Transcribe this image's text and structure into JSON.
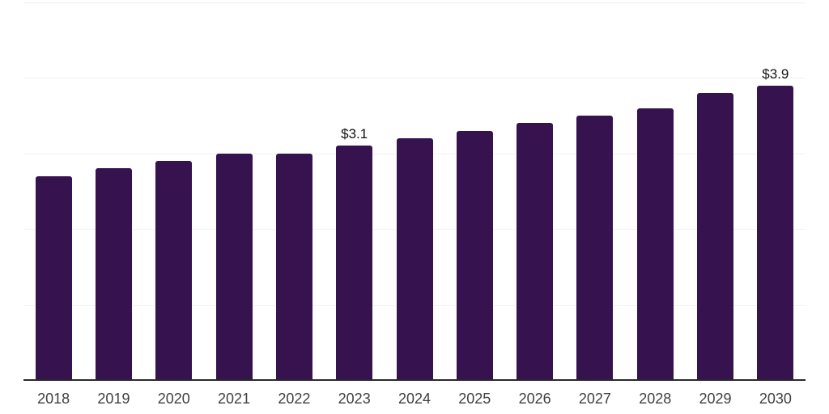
{
  "chart": {
    "background_color": "#ffffff",
    "bar_color": "#36124F",
    "gridline_color": "#F0F0F0",
    "axis_line_color": "#2A2A2A",
    "tick_label_color": "#404040",
    "value_label_color": "#121212"
  },
  "chart_data": {
    "type": "bar",
    "title": "",
    "xlabel": "",
    "ylabel": "",
    "categories": [
      "2018",
      "2019",
      "2020",
      "2021",
      "2022",
      "2023",
      "2024",
      "2025",
      "2026",
      "2027",
      "2028",
      "2029",
      "2030"
    ],
    "values": [
      2.7,
      2.8,
      2.9,
      3.0,
      3.0,
      3.1,
      3.2,
      3.3,
      3.4,
      3.5,
      3.6,
      3.8,
      3.9
    ],
    "value_labels": [
      {
        "category": "2023",
        "text": "$3.1"
      },
      {
        "category": "2030",
        "text": "$3.9"
      }
    ],
    "ylim": [
      0,
      5
    ],
    "gridline_values": [
      1,
      2,
      3,
      4,
      5
    ],
    "grid": "horizontal",
    "legend_position": "none",
    "y_axis_tick_labels_shown": false
  }
}
